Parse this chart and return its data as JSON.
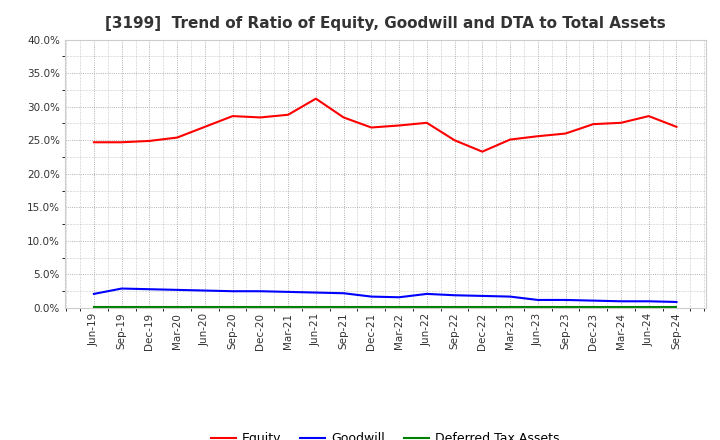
{
  "title": "[3199]  Trend of Ratio of Equity, Goodwill and DTA to Total Assets",
  "x_labels": [
    "Jun-19",
    "Sep-19",
    "Dec-19",
    "Mar-20",
    "Jun-20",
    "Sep-20",
    "Dec-20",
    "Mar-21",
    "Jun-21",
    "Sep-21",
    "Dec-21",
    "Mar-22",
    "Jun-22",
    "Sep-22",
    "Dec-22",
    "Mar-23",
    "Jun-23",
    "Sep-23",
    "Dec-23",
    "Mar-24",
    "Jun-24",
    "Sep-24"
  ],
  "equity": [
    0.247,
    0.247,
    0.249,
    0.254,
    0.27,
    0.286,
    0.284,
    0.288,
    0.312,
    0.284,
    0.269,
    0.272,
    0.276,
    0.25,
    0.233,
    0.251,
    0.256,
    0.26,
    0.274,
    0.276,
    0.286,
    0.27
  ],
  "goodwill": [
    0.021,
    0.029,
    0.028,
    0.027,
    0.026,
    0.025,
    0.025,
    0.024,
    0.023,
    0.022,
    0.017,
    0.016,
    0.021,
    0.019,
    0.018,
    0.017,
    0.012,
    0.012,
    0.011,
    0.01,
    0.01,
    0.009
  ],
  "dta": [
    0.001,
    0.001,
    0.001,
    0.001,
    0.001,
    0.001,
    0.001,
    0.001,
    0.001,
    0.001,
    0.001,
    0.001,
    0.001,
    0.001,
    0.001,
    0.001,
    0.001,
    0.001,
    0.001,
    0.001,
    0.001,
    0.001
  ],
  "equity_color": "#ff0000",
  "goodwill_color": "#0000ff",
  "dta_color": "#008000",
  "ylim": [
    0.0,
    0.4
  ],
  "yticks": [
    0.0,
    0.05,
    0.1,
    0.15,
    0.2,
    0.25,
    0.3,
    0.35,
    0.4
  ],
  "background_color": "#ffffff",
  "grid_color": "#999999",
  "title_fontsize": 11,
  "title_color": "#333333",
  "tick_fontsize": 7.5,
  "legend_labels": [
    "Equity",
    "Goodwill",
    "Deferred Tax Assets"
  ],
  "legend_fontsize": 9
}
